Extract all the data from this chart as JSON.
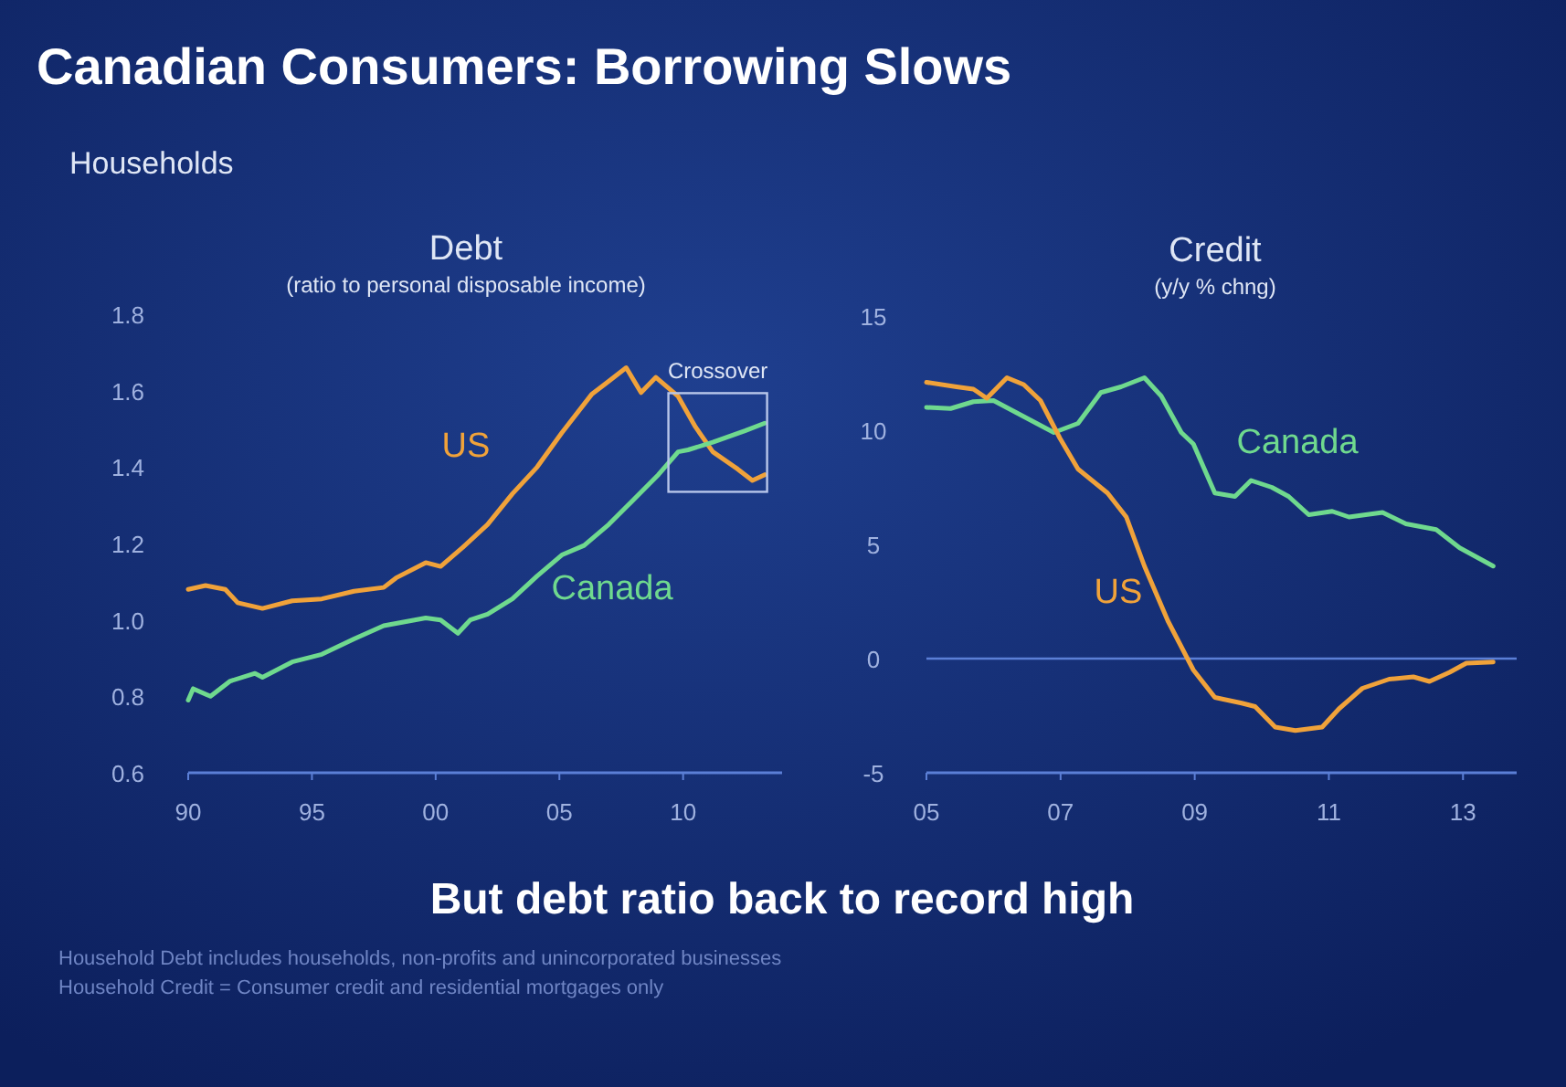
{
  "chart_data": [
    {
      "type": "line",
      "title": "Debt",
      "subtitle": "(ratio to personal disposable income)",
      "annotations": [
        "Canadian Consumers: Borrowing Slows",
        "Households",
        {
          "text": "Crossover",
          "x": 2011.4,
          "y": 1.45
        }
      ],
      "xlim": [
        1990,
        2014
      ],
      "xticks": [
        {
          "value": 1990,
          "label": "90"
        },
        {
          "value": 1995,
          "label": "95"
        },
        {
          "value": 2000,
          "label": "00"
        },
        {
          "value": 2005,
          "label": "05"
        },
        {
          "value": 2010,
          "label": "10"
        }
      ],
      "ylim": [
        0.6,
        1.8
      ],
      "yticks": [
        0.6,
        0.8,
        {
          "value": 1.0,
          "label": "1.0"
        },
        1.2,
        1.4,
        1.6,
        1.8
      ],
      "series": [
        {
          "name": "US",
          "color": "#f0a23a",
          "x": [
            1990,
            1990.7,
            1991.5,
            1992,
            1993,
            1994.2,
            1995.4,
            1996.7,
            1997.9,
            1998.4,
            1999.6,
            2000.2,
            2001.1,
            2002.1,
            2003.1,
            2004.1,
            2005.1,
            2006.3,
            2007,
            2007.7,
            2008.3,
            2008.9,
            2009.8,
            2010.5,
            2011.2,
            2012.2,
            2012.8,
            2013.3
          ],
          "values": [
            1.08,
            1.09,
            1.08,
            1.045,
            1.03,
            1.05,
            1.055,
            1.075,
            1.085,
            1.11,
            1.15,
            1.14,
            1.19,
            1.25,
            1.33,
            1.4,
            1.49,
            1.59,
            1.625,
            1.66,
            1.595,
            1.635,
            1.585,
            1.505,
            1.44,
            1.395,
            1.365,
            1.38
          ]
        },
        {
          "name": "Canada",
          "color": "#6fd98e",
          "x": [
            1990,
            1990.2,
            1990.9,
            1991.7,
            1992.7,
            1993,
            1994.2,
            1995.4,
            1996.7,
            1997.9,
            1999.6,
            2000.2,
            2000.9,
            2001.4,
            2002.1,
            2003.1,
            2004.1,
            2005.1,
            2006,
            2007,
            2008,
            2009,
            2009.8,
            2010.2,
            2011.2,
            2012.5,
            2013.3
          ],
          "values": [
            0.79,
            0.82,
            0.8,
            0.84,
            0.86,
            0.85,
            0.89,
            0.91,
            0.95,
            0.985,
            1.005,
            1.0,
            0.965,
            1.0,
            1.015,
            1.055,
            1.115,
            1.17,
            1.195,
            1.25,
            1.315,
            1.38,
            1.44,
            1.445,
            1.465,
            1.495,
            1.515
          ]
        }
      ]
    },
    {
      "type": "line",
      "title": "Credit",
      "subtitle": "(y/y % chng)",
      "annotations": [
        "But debt ratio back to record high",
        "Household Debt includes households, non-profits and unincorporated businesses",
        "Household Credit = Consumer credit and residential mortgages only"
      ],
      "xlim": [
        2005,
        2013.8
      ],
      "xticks": [
        {
          "value": 2005,
          "label": "05"
        },
        {
          "value": 2007,
          "label": "07"
        },
        {
          "value": 2009,
          "label": "09"
        },
        {
          "value": 2011,
          "label": "11"
        },
        {
          "value": 2013,
          "label": "13"
        }
      ],
      "ylim": [
        -5,
        15
      ],
      "yticks": [
        -5,
        0,
        5,
        10,
        15
      ],
      "ref_lines": [
        {
          "axis": "y",
          "value": 0,
          "color": "#5b7fd6"
        }
      ],
      "series": [
        {
          "name": "Canada",
          "color": "#6fd98e",
          "x": [
            2005,
            2005.36,
            2005.7,
            2006,
            2006.45,
            2006.9,
            2007.26,
            2007.6,
            2007.9,
            2008.25,
            2008.5,
            2008.8,
            2008.98,
            2009.3,
            2009.6,
            2009.84,
            2010.15,
            2010.4,
            2010.7,
            2011.05,
            2011.3,
            2011.8,
            2012.15,
            2012.6,
            2012.95,
            2013.45
          ],
          "values": [
            11.0,
            10.95,
            11.25,
            11.3,
            10.6,
            9.9,
            10.3,
            11.65,
            11.9,
            12.3,
            11.5,
            9.9,
            9.4,
            7.25,
            7.1,
            7.8,
            7.5,
            7.1,
            6.3,
            6.45,
            6.2,
            6.4,
            5.9,
            5.65,
            4.85,
            4.05
          ]
        },
        {
          "name": "US",
          "color": "#f0a23a",
          "x": [
            2005,
            2005.45,
            2005.7,
            2005.9,
            2006.2,
            2006.45,
            2006.7,
            2006.99,
            2007.26,
            2007.7,
            2007.98,
            2008.25,
            2008.6,
            2008.98,
            2009.3,
            2009.7,
            2009.9,
            2010.2,
            2010.5,
            2010.9,
            2011.15,
            2011.5,
            2011.9,
            2012.26,
            2012.5,
            2012.8,
            2013.05,
            2013.45
          ],
          "values": [
            12.1,
            11.9,
            11.8,
            11.4,
            12.3,
            12.0,
            11.3,
            9.65,
            8.3,
            7.25,
            6.2,
            4.05,
            1.65,
            -0.5,
            -1.7,
            -1.95,
            -2.1,
            -3.0,
            -3.15,
            -3.0,
            -2.2,
            -1.3,
            -0.9,
            -0.8,
            -1.0,
            -0.6,
            -0.2,
            -0.15
          ]
        }
      ]
    }
  ]
}
